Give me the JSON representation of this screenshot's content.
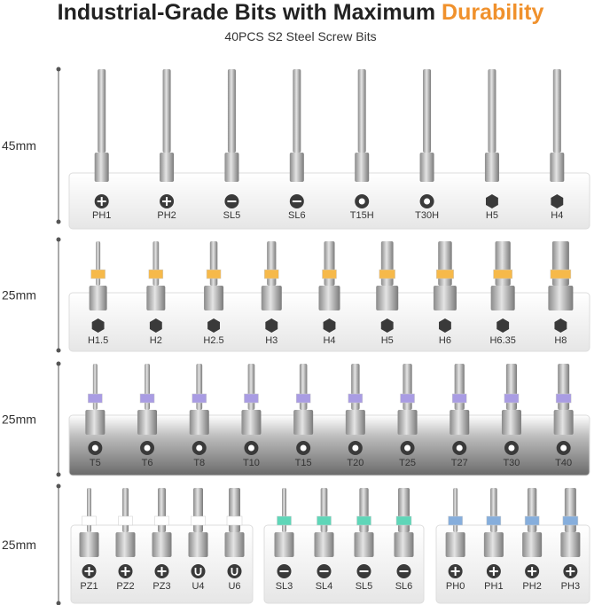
{
  "header": {
    "title_parts": [
      "Industrial-Grade Bits with Maximum",
      "Durability"
    ],
    "subtitle": "40PCS S2 Steel Screw Bits"
  },
  "rows": [
    {
      "length": "45mm",
      "groups": [
        {
          "bits": [
            "PH1",
            "PH2",
            "SL5",
            "SL6",
            "T15H",
            "T30H",
            "H5",
            "H4"
          ]
        }
      ]
    },
    {
      "length": "25mm",
      "groups": [
        {
          "band_color": "#f6b94a",
          "bits": [
            "H1.5",
            "H2",
            "H2.5",
            "H3",
            "H4",
            "H5",
            "H6",
            "H6.35",
            "H8"
          ]
        }
      ]
    },
    {
      "length": "25mm",
      "groups": [
        {
          "band_color": "#a99ce3",
          "bits": [
            "T5",
            "T6",
            "T8",
            "T10",
            "T15",
            "T20",
            "T25",
            "T27",
            "T30",
            "T40"
          ]
        }
      ]
    },
    {
      "length": "25mm",
      "groups": [
        {
          "band_color": "#ffffff",
          "bits": [
            "PZ1",
            "PZ2",
            "PZ3",
            "U4",
            "U6"
          ]
        },
        {
          "band_color": "#5fd6b8",
          "bits": [
            "SL3",
            "SL4",
            "SL5",
            "SL6"
          ]
        },
        {
          "band_color": "#86aedc",
          "bits": [
            "PH0",
            "PH1",
            "PH2",
            "PH3"
          ]
        }
      ]
    }
  ]
}
